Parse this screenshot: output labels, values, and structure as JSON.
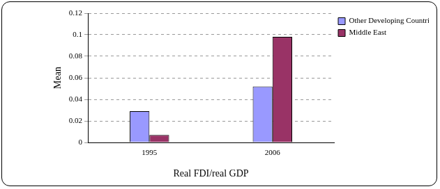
{
  "chart_data": {
    "type": "bar",
    "x_label": "Real FDI/real GDP",
    "y_label": "Mean",
    "categories": [
      "1995",
      "2006"
    ],
    "series": [
      {
        "name": "Other Developing Countries",
        "color": "#9999ff",
        "values": [
          0.029,
          0.052
        ]
      },
      {
        "name": "Middle East",
        "color": "#993366",
        "values": [
          0.007,
          0.098
        ]
      }
    ],
    "ylim": [
      0,
      0.12
    ],
    "yticks": [
      0,
      0.02,
      0.04,
      0.06,
      0.08,
      0.1,
      0.12
    ],
    "grid": true,
    "legend": "right"
  }
}
